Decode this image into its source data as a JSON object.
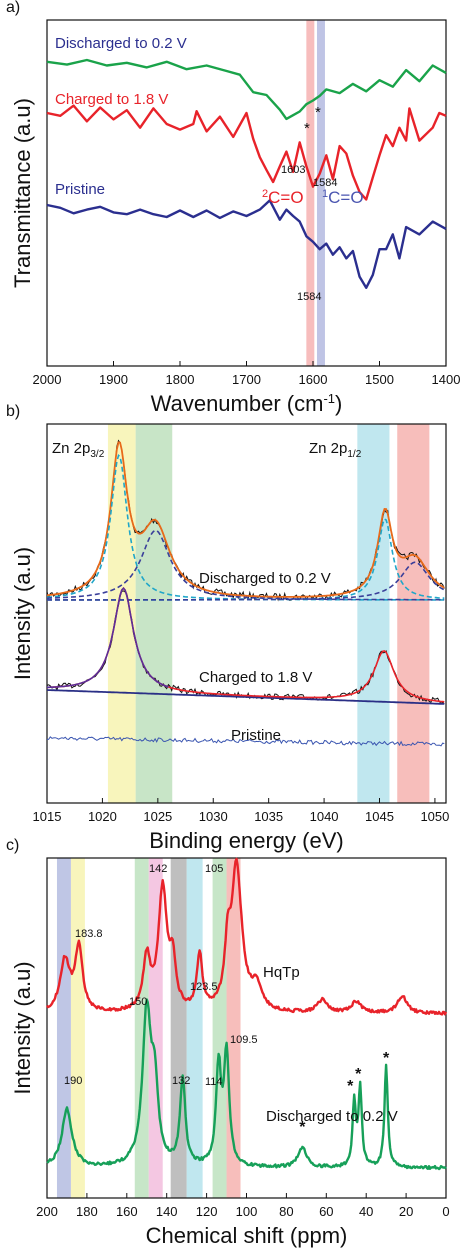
{
  "colors": {
    "green": "#1aa34a",
    "red": "#e8232a",
    "blue": "#2b2f8f",
    "cyan": "#1fa6c9",
    "navy": "#2a2f86",
    "dash_navy": "#3a3f9a",
    "black": "#111111"
  },
  "chart_data": [
    {
      "panel_label": "a)",
      "type": "line",
      "xlabel": "Wavenumber (cm",
      "xlabel_sup": "-1",
      "xlabel_end": ")",
      "ylabel": "Transmittance (a.u)",
      "xlim": [
        2000,
        1400
      ],
      "xticks": [
        2000,
        1900,
        1800,
        1700,
        1600,
        1500,
        1400
      ],
      "grid": false,
      "bands": [
        {
          "from": 1610,
          "to": 1598,
          "color": "#f4a7a7"
        },
        {
          "from": 1594,
          "to": 1582,
          "color": "#aab0dc"
        }
      ],
      "series": [
        {
          "name": "Discharged to 0.2 V",
          "color": "#1aa34a",
          "x": [
            2000,
            1970,
            1940,
            1910,
            1880,
            1850,
            1820,
            1790,
            1760,
            1730,
            1710,
            1690,
            1670,
            1660,
            1650,
            1640,
            1630,
            1620,
            1610,
            1600,
            1590,
            1580,
            1560,
            1540,
            1520,
            1500,
            1480,
            1460,
            1440,
            1420,
            1400
          ],
          "y": [
            0.2,
            0.5,
            0.0,
            0.6,
            0.3,
            0.8,
            0.2,
            1.0,
            0.6,
            1.2,
            1.6,
            3.5,
            3.8,
            4.6,
            5.4,
            6.4,
            6.0,
            5.6,
            4.8,
            4.4,
            3.9,
            3.2,
            3.6,
            2.6,
            3.4,
            2.2,
            2.9,
            1.1,
            2.3,
            0.6,
            1.4
          ]
        },
        {
          "name": "Charged to 1.8 V",
          "color": "#e8232a",
          "x": [
            2000,
            1980,
            1960,
            1940,
            1920,
            1900,
            1880,
            1860,
            1840,
            1820,
            1800,
            1780,
            1775,
            1760,
            1740,
            1720,
            1700,
            1690,
            1680,
            1670,
            1660,
            1650,
            1640,
            1630,
            1620,
            1610,
            1600,
            1590,
            1580,
            1570,
            1560,
            1550,
            1540,
            1530,
            1520,
            1510,
            1500,
            1490,
            1480,
            1470,
            1460,
            1455,
            1440,
            1420,
            1410,
            1400
          ],
          "y": [
            0.0,
            0.3,
            -0.8,
            0.9,
            -0.6,
            0.7,
            -0.3,
            1.6,
            -0.5,
            1.2,
            1.8,
            1.2,
            -0.2,
            2.0,
            0.4,
            2.6,
            0.0,
            2.8,
            4.8,
            6.2,
            7.5,
            5.8,
            4.2,
            6.4,
            3.2,
            5.8,
            8.0,
            6.6,
            4.6,
            7.2,
            3.6,
            4.4,
            6.8,
            8.6,
            9.4,
            7.0,
            4.6,
            2.4,
            3.6,
            1.6,
            3.0,
            -0.5,
            3.0,
            1.6,
            0.0,
            0.3
          ]
        },
        {
          "name": "Pristine",
          "color": "#2b2f8f",
          "x": [
            2000,
            1980,
            1960,
            1940,
            1920,
            1900,
            1880,
            1860,
            1840,
            1820,
            1800,
            1780,
            1760,
            1740,
            1720,
            1700,
            1680,
            1665,
            1650,
            1640,
            1630,
            1620,
            1610,
            1600,
            1590,
            1580,
            1570,
            1560,
            1550,
            1540,
            1530,
            1520,
            1510,
            1500,
            1490,
            1480,
            1470,
            1460,
            1440,
            1420,
            1400
          ],
          "y": [
            0.0,
            0.3,
            0.9,
            0.5,
            0.2,
            0.8,
            1.0,
            0.5,
            1.0,
            1.3,
            0.6,
            1.3,
            0.6,
            1.4,
            0.7,
            1.2,
            0.5,
            -0.5,
            1.6,
            0.5,
            1.2,
            1.8,
            3.4,
            4.0,
            4.8,
            4.2,
            5.4,
            4.6,
            5.8,
            5.0,
            7.8,
            9.0,
            7.6,
            4.8,
            4.8,
            3.2,
            5.8,
            2.4,
            3.2,
            1.8,
            2.6
          ]
        }
      ],
      "labels": [
        {
          "text": "Discharged to 0.2 V",
          "color": "#2b2f8f",
          "x": 1985,
          "y_on": "Discharged to 0.2 V",
          "dy": -2.2
        },
        {
          "text": "Charged to 1.8 V",
          "color": "#e8232a",
          "x": 1985,
          "y_on": "Charged to 1.8 V",
          "dy": -2.4
        },
        {
          "text": "Pristine",
          "color": "#2b2f8f",
          "x": 1985,
          "y_on": "Pristine",
          "dy": -2.2
        }
      ],
      "annotations": [
        "1603",
        "1584",
        "1584",
        "*",
        "*"
      ],
      "bond_labels": [
        {
          "pre": "2",
          "text": "C=O",
          "color": "#e8232a"
        },
        {
          "pre": "1",
          "text": "C=O",
          "color": "#4a55b0"
        }
      ]
    },
    {
      "panel_label": "b)",
      "type": "line",
      "xlabel": "Binding energy (eV)",
      "ylabel": "Intensity (a.u)",
      "xlim": [
        1015,
        1051
      ],
      "xticks": [
        1015,
        1020,
        1025,
        1030,
        1035,
        1040,
        1045,
        1050
      ],
      "grid": false,
      "bands": [
        {
          "from": 1020.5,
          "to": 1023.0,
          "color": "#f6f2a6"
        },
        {
          "from": 1023.0,
          "to": 1026.3,
          "color": "#b6dcb4"
        },
        {
          "from": 1043.0,
          "to": 1045.9,
          "color": "#abdfe9"
        },
        {
          "from": 1046.6,
          "to": 1049.5,
          "color": "#f4a8a4"
        }
      ],
      "peak_labels": [
        {
          "text": "Zn 2p",
          "sub": "3/2"
        },
        {
          "text": "Zn 2p",
          "sub": "1/2"
        }
      ],
      "curves": [
        {
          "name": "Discharged to 0.2 V",
          "label": "Discharged to 0.2 V",
          "baseline": 0.0,
          "peaks": [
            {
              "center": 1021.5,
              "height": 10.0,
              "width": 0.9,
              "kind": "fit-main",
              "color": "#1fa6c9"
            },
            {
              "center": 1024.8,
              "height": 4.8,
              "width": 1.6,
              "kind": "fit-side",
              "color": "#3a3f9a"
            },
            {
              "center": 1045.5,
              "height": 5.6,
              "width": 0.8,
              "kind": "fit-main",
              "color": "#1fa6c9"
            },
            {
              "center": 1048.2,
              "height": 2.6,
              "width": 1.6,
              "kind": "fit-side",
              "color": "#3a3f9a"
            }
          ]
        },
        {
          "name": "Charged to 1.8 V",
          "label": "Charged to 1.8 V",
          "baseline_slope": true,
          "peaks": [
            {
              "center": 1021.9,
              "height": 7.2,
              "width": 1.1
            },
            {
              "center": 1045.4,
              "height": 3.5,
              "width": 1.1
            }
          ]
        },
        {
          "name": "Pristine",
          "label": "Pristine",
          "peaks": []
        }
      ]
    },
    {
      "panel_label": "c)",
      "type": "line",
      "xlabel": "Chemical shift (ppm)",
      "ylabel": "Intensity (a.u)",
      "xlim": [
        200,
        0
      ],
      "xticks": [
        200,
        180,
        160,
        140,
        120,
        100,
        80,
        60,
        40,
        20,
        0
      ],
      "grid": false,
      "bands": [
        {
          "from": 195,
          "to": 188,
          "color": "#aab3dc"
        },
        {
          "from": 188,
          "to": 181,
          "color": "#f6f2a6"
        },
        {
          "from": 156,
          "to": 149,
          "color": "#b4ddb6"
        },
        {
          "from": 149,
          "to": 142,
          "color": "#f0b4d8"
        },
        {
          "from": 138,
          "to": 130,
          "color": "#a9a9a9"
        },
        {
          "from": 130,
          "to": 122,
          "color": "#abdfe9"
        },
        {
          "from": 117,
          "to": 110,
          "color": "#b4ddb6"
        },
        {
          "from": 110,
          "to": 103,
          "color": "#f4a8a4"
        }
      ],
      "series": [
        {
          "name": "HqTp",
          "label": "HqTp",
          "color": "#e8232a",
          "peaks": [
            [
              191,
              3.6,
              3
            ],
            [
              184,
              4.4,
              2.2
            ],
            [
              150,
              3.6,
              2.2
            ],
            [
              142,
              8.4,
              2.6
            ],
            [
              137,
              3.0,
              1.8
            ],
            [
              123.5,
              3.8,
              1.6
            ],
            [
              109.5,
              3.4,
              1.6
            ],
            [
              105,
              10.0,
              3.2
            ],
            [
              95,
              1.6,
              3
            ],
            [
              62,
              0.9,
              3
            ],
            [
              45,
              0.8,
              3
            ],
            [
              22,
              1.2,
              3
            ]
          ]
        },
        {
          "name": "Discharged to 0.2 V",
          "label": "Discharged to 0.2 V",
          "color": "#17a059",
          "peaks": [
            [
              190,
              4.2,
              3
            ],
            [
              150,
              11.0,
              2.6
            ],
            [
              146,
              5.0,
              2.0
            ],
            [
              132,
              6.2,
              1.6
            ],
            [
              114,
              7.0,
              1.5
            ],
            [
              110,
              8.0,
              1.6
            ],
            [
              72,
              1.4,
              2.6
            ],
            [
              46,
              4.6,
              1.0
            ],
            [
              43,
              5.6,
              1.0
            ],
            [
              30,
              7.4,
              1.0
            ]
          ]
        }
      ],
      "annotations": [
        {
          "text": "142",
          "x": 142,
          "series": "HqTp"
        },
        {
          "text": "105",
          "x": 103,
          "series": "HqTp"
        },
        {
          "text": "183.8",
          "x": 180,
          "series": "HqTp"
        },
        {
          "text": "150",
          "x": 155,
          "series": "HqTp"
        },
        {
          "text": "123.5",
          "x": 121,
          "series": "HqTp"
        },
        {
          "text": "109.5",
          "x": 103,
          "series": "HqTp"
        },
        {
          "text": "190",
          "x": 190,
          "series": "Discharged to 0.2 V"
        },
        {
          "text": "132",
          "x": 132,
          "series": "Discharged to 0.2 V"
        },
        {
          "text": "114",
          "x": 116,
          "series": "Discharged to 0.2 V"
        }
      ],
      "stars": [
        72,
        48,
        44,
        30
      ]
    }
  ]
}
